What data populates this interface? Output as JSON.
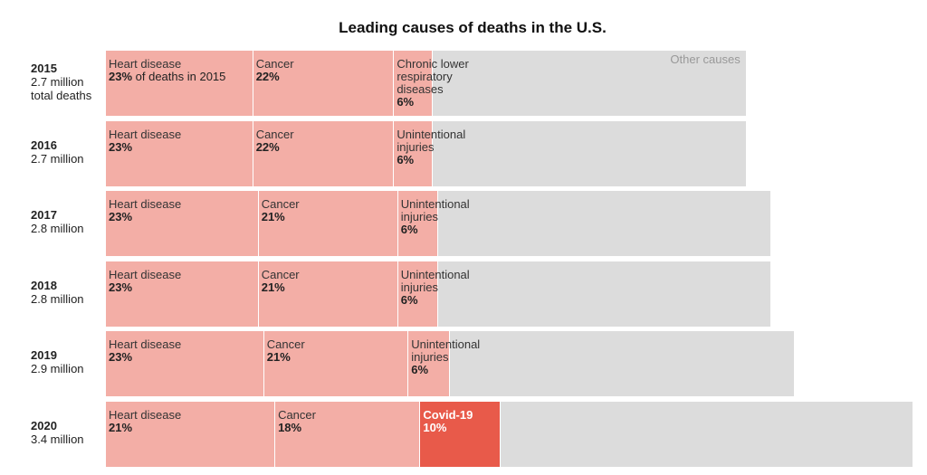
{
  "title": "Leading causes of deaths in the U.S.",
  "other_label": "Other causes",
  "colors": {
    "cause": "#f3aea6",
    "covid": "#e85a4a",
    "other": "#dcdcdc"
  },
  "chart_data": {
    "type": "bar",
    "orientation": "horizontal",
    "stacked": true,
    "title": "Leading causes of deaths in the U.S.",
    "unit": "share of total deaths (%)",
    "categories": [
      "2015",
      "2016",
      "2017",
      "2018",
      "2019",
      "2020"
    ],
    "rows": [
      {
        "year": "2015",
        "total_label": "2.7 million\ntotal deaths",
        "total_millions": 2.7,
        "segments": [
          {
            "label": "Heart disease",
            "value": 23,
            "pct_text": "23%",
            "suffix": " of deaths in 2015"
          },
          {
            "label": "Cancer",
            "value": 22,
            "pct_text": "22%"
          },
          {
            "label": "Chronic lower\nrespiratory\ndiseases",
            "value": 6,
            "pct_text": "6%"
          }
        ]
      },
      {
        "year": "2016",
        "total_label": "2.7 million",
        "total_millions": 2.7,
        "segments": [
          {
            "label": "Heart disease",
            "value": 23,
            "pct_text": "23%"
          },
          {
            "label": "Cancer",
            "value": 22,
            "pct_text": "22%"
          },
          {
            "label": "Unintentional\ninjuries",
            "value": 6,
            "pct_text": "6%"
          }
        ]
      },
      {
        "year": "2017",
        "total_label": "2.8 million",
        "total_millions": 2.8,
        "segments": [
          {
            "label": "Heart disease",
            "value": 23,
            "pct_text": "23%"
          },
          {
            "label": "Cancer",
            "value": 21,
            "pct_text": "21%"
          },
          {
            "label": "Unintentional\ninjuries",
            "value": 6,
            "pct_text": "6%"
          }
        ]
      },
      {
        "year": "2018",
        "total_label": "2.8 million",
        "total_millions": 2.8,
        "segments": [
          {
            "label": "Heart disease",
            "value": 23,
            "pct_text": "23%"
          },
          {
            "label": "Cancer",
            "value": 21,
            "pct_text": "21%"
          },
          {
            "label": "Unintentional\ninjuries",
            "value": 6,
            "pct_text": "6%"
          }
        ]
      },
      {
        "year": "2019",
        "total_label": "2.9 million",
        "total_millions": 2.9,
        "segments": [
          {
            "label": "Heart disease",
            "value": 23,
            "pct_text": "23%"
          },
          {
            "label": "Cancer",
            "value": 21,
            "pct_text": "21%"
          },
          {
            "label": "Unintentional\ninjuries",
            "value": 6,
            "pct_text": "6%"
          }
        ]
      },
      {
        "year": "2020",
        "total_label": "3.4 million",
        "total_millions": 3.4,
        "segments": [
          {
            "label": "Heart disease",
            "value": 21,
            "pct_text": "21%"
          },
          {
            "label": "Cancer",
            "value": 18,
            "pct_text": "18%"
          },
          {
            "label": "Covid-19",
            "value": 10,
            "pct_text": "10%",
            "highlight": true
          }
        ]
      }
    ]
  }
}
